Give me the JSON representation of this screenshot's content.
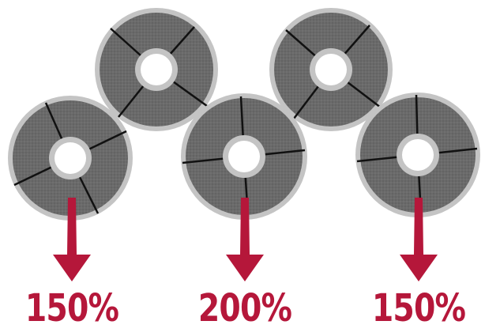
{
  "colors": {
    "disc": "#6a6a6a",
    "rim": "#c4c4c4",
    "slit": "#111111",
    "arrow": "#b5173a",
    "label": "#b5173a"
  },
  "labels": {
    "left": "150%",
    "center": "200%",
    "right": "150%"
  }
}
